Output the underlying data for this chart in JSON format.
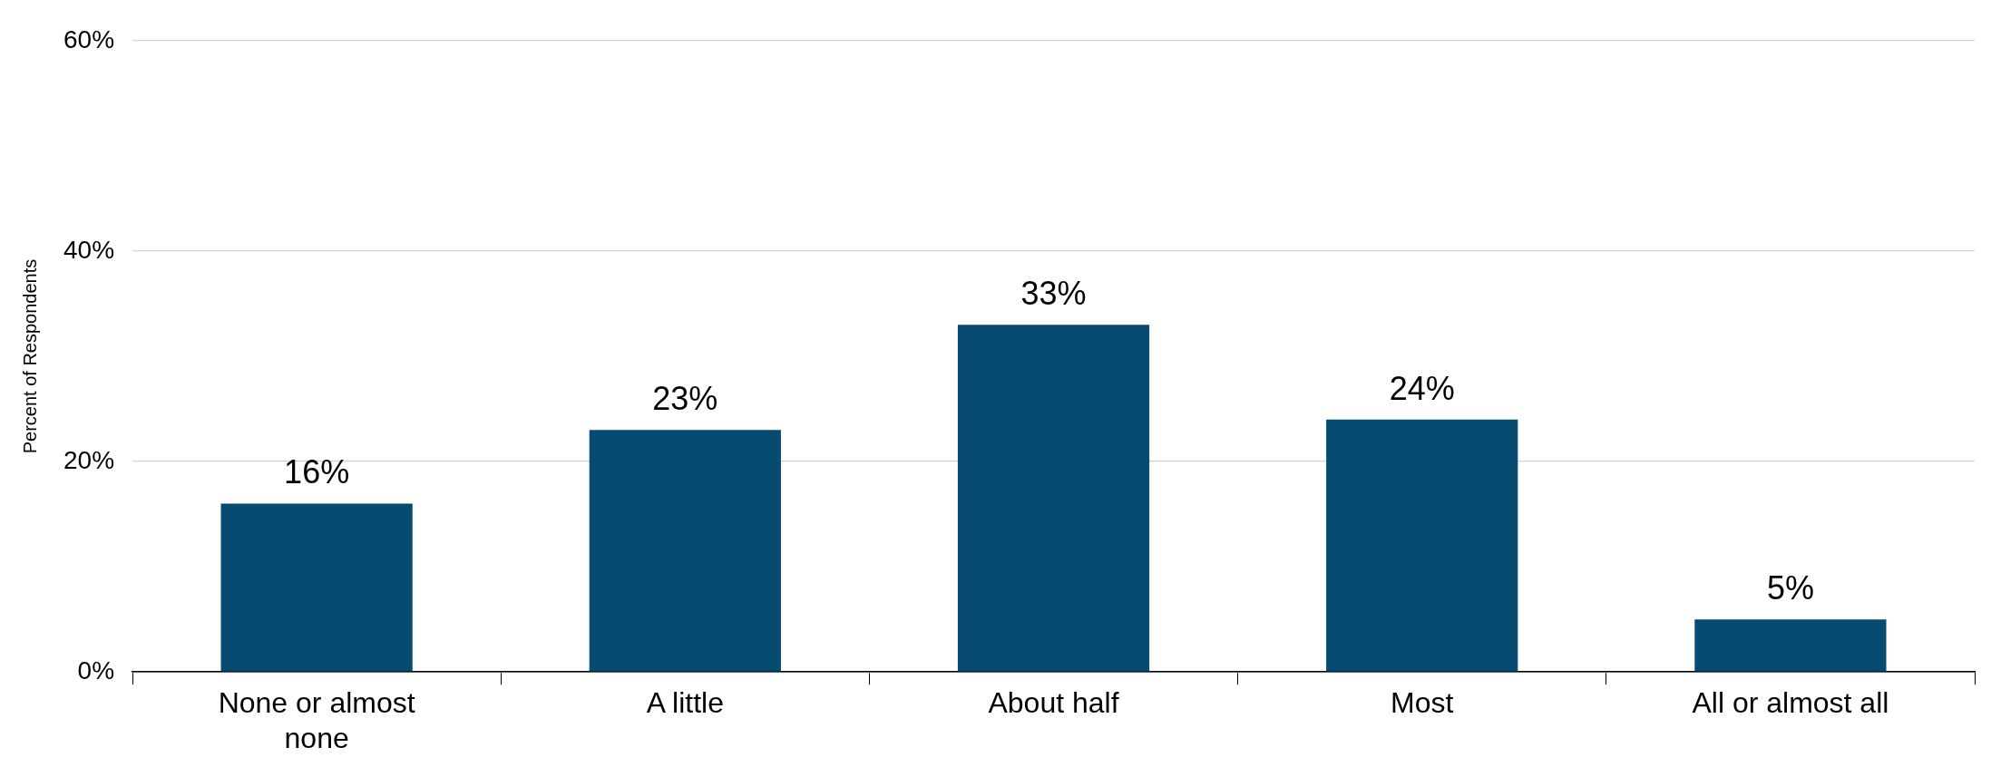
{
  "chart_data": {
    "type": "bar",
    "ylabel": "Percent of Respondents",
    "categories": [
      "None or almost none",
      "A little",
      "About half",
      "Most",
      "All or almost all"
    ],
    "values": [
      16,
      23,
      33,
      24,
      5
    ],
    "value_labels": [
      "16%",
      "23%",
      "33%",
      "24%",
      "5%"
    ],
    "color": "#074a72",
    "ylim": [
      0,
      60
    ],
    "yticks": [
      {
        "value": 0,
        "label": "0%"
      },
      {
        "value": 20,
        "label": "20%"
      },
      {
        "value": 40,
        "label": "40%"
      },
      {
        "value": 60,
        "label": "60%"
      }
    ],
    "grid": "y",
    "legend": false
  }
}
